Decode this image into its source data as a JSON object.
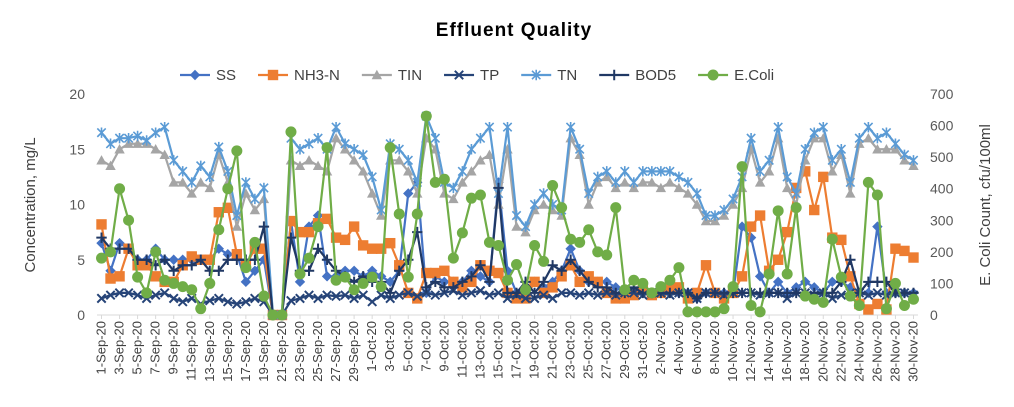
{
  "chart_data": {
    "type": "line",
    "title": "Effluent Quality",
    "y_label": "Concentration, mg/L",
    "y2_label": "E. Coli Count, cfu/100ml",
    "categories": [
      "1-Sep-20",
      null,
      "3-Sep-20",
      null,
      "5-Sep-20",
      null,
      "7-Sep-20",
      null,
      "9-Sep-20",
      null,
      "11-Sep-20",
      null,
      "13-Sep-20",
      null,
      "15-Sep-20",
      null,
      "17-Sep-20",
      null,
      "19-Sep-20",
      null,
      "21-Sep-20",
      null,
      "23-Sep-20",
      null,
      "25-Sep-20",
      null,
      "27-Sep-20",
      null,
      "29-Sep-20",
      null,
      "1-Oct-20",
      null,
      "3-Oct-20",
      null,
      "5-Oct-20",
      null,
      "7-Oct-20",
      null,
      "9-Oct-20",
      null,
      "11-Oct-20",
      null,
      "13-Oct-20",
      null,
      "15-Oct-20",
      null,
      "17-Oct-20",
      null,
      "19-Oct-20",
      null,
      "21-Oct-20",
      null,
      "23-Oct-20",
      null,
      "25-Oct-20",
      null,
      "27-Oct-20",
      null,
      "29-Oct-20",
      null,
      "31-Oct-20",
      null,
      "2-Nov-20",
      null,
      "4-Nov-20",
      null,
      "6-Nov-20",
      null,
      "8-Nov-20",
      null,
      "10-Nov-20",
      null,
      "12-Nov-20",
      null,
      "14-Nov-20",
      null,
      "16-Nov-20",
      null,
      "18-Nov-20",
      null,
      "20-Nov-20",
      null,
      "22-Nov-20",
      null,
      "24-Nov-20",
      null,
      "26-Nov-20",
      null,
      "28-Nov-20",
      null,
      "30-Nov-20"
    ],
    "ylim": [
      0,
      20
    ],
    "yticks": [
      0,
      5,
      10,
      15,
      20
    ],
    "y2lim": [
      0,
      700
    ],
    "y2ticks": [
      0,
      100,
      200,
      300,
      400,
      500,
      600,
      700
    ],
    "grid": false,
    "legend": "top",
    "series": [
      {
        "name": "SS",
        "color": "#4472c4",
        "values": [
          6.5,
          4,
          6.5,
          6,
          5,
          5,
          6,
          5,
          5,
          5,
          5,
          5,
          5,
          6,
          5.5,
          5.5,
          3,
          4,
          5,
          0,
          0,
          8.5,
          3,
          8,
          9,
          3.5,
          3.5,
          4,
          4,
          3.5,
          4,
          3.5,
          3,
          4,
          11,
          12,
          2,
          3.5,
          3,
          3,
          3,
          4,
          3.5,
          3,
          12,
          4,
          2,
          2,
          3,
          2.5,
          3,
          4,
          6,
          4,
          3,
          3,
          3,
          2.5,
          2,
          2,
          2,
          2,
          2,
          2,
          2,
          2,
          1.5,
          2,
          2,
          2,
          2,
          8,
          7,
          3.5,
          2,
          3,
          2,
          2.5,
          3,
          2.5,
          2,
          3,
          3,
          2.5,
          2,
          2,
          8,
          2,
          2,
          2,
          2
        ]
      },
      {
        "name": "NH3-N",
        "color": "#ed7d31",
        "values": [
          8.2,
          3.3,
          3.5,
          6,
          4.5,
          4.5,
          3.5,
          3,
          3,
          4.5,
          5.3,
          5,
          5,
          9.3,
          9.7,
          5.5,
          4.5,
          6,
          6,
          0,
          0,
          8.5,
          7.5,
          7.5,
          8.3,
          8.7,
          7,
          6.8,
          8,
          6.3,
          6,
          6,
          6.5,
          4.5,
          2,
          1.5,
          3.8,
          3.8,
          4,
          3,
          2.5,
          3,
          4.5,
          4,
          3.8,
          2,
          1.5,
          1.5,
          3,
          2,
          2.5,
          3.5,
          4.5,
          3,
          3.5,
          3,
          2,
          1.5,
          1.5,
          1.8,
          2.5,
          1.8,
          2,
          2.5,
          2.5,
          1.5,
          2,
          4.5,
          2,
          1.5,
          2,
          3.5,
          8,
          9,
          4,
          5,
          7.5,
          11.5,
          13,
          9.5,
          12.5,
          7,
          6.8,
          3.5,
          1,
          0.5,
          1,
          0.5,
          6,
          5.8,
          5.2
        ]
      },
      {
        "name": "TIN",
        "color": "#a5a5a5",
        "values": [
          14,
          13.5,
          15,
          15.5,
          15.5,
          15.5,
          15,
          14.5,
          12,
          12,
          11,
          12,
          11.5,
          14.5,
          12,
          8,
          11,
          9.5,
          10.5,
          0,
          0,
          14,
          13.5,
          14,
          13.5,
          13,
          16,
          15,
          14,
          13,
          11,
          9,
          14,
          14,
          13,
          11,
          16,
          15,
          11,
          10.5,
          12,
          13,
          14,
          14.5,
          10,
          15,
          8,
          7.5,
          9.5,
          10,
          9.5,
          9,
          16,
          14.5,
          10,
          12,
          12.5,
          11.5,
          12,
          11.5,
          12,
          12,
          11.5,
          12,
          11.5,
          11,
          10,
          8.5,
          8.5,
          9,
          10,
          11.5,
          15,
          12,
          13,
          16,
          11.5,
          10,
          14,
          16,
          16,
          13,
          14.5,
          11,
          15.5,
          16,
          15,
          15,
          15,
          14,
          13.5
        ]
      },
      {
        "name": "TP",
        "color": "#264478",
        "values": [
          1.5,
          1.8,
          2,
          2,
          1.8,
          1.5,
          1.8,
          2,
          1.5,
          1.2,
          1.5,
          1,
          1.3,
          1.5,
          1.2,
          1,
          1.2,
          1.5,
          1.2,
          0,
          0,
          1.3,
          1.5,
          1.8,
          1.5,
          1.8,
          1.7,
          1.8,
          1.5,
          1.8,
          1.2,
          1.8,
          1.5,
          1.8,
          2,
          1.7,
          2,
          1.8,
          2,
          2.2,
          1.8,
          2,
          2.2,
          1.8,
          2,
          1.5,
          1.8,
          1.5,
          1.5,
          1.8,
          1.5,
          2,
          2,
          1.8,
          2,
          1.8,
          2,
          1.8,
          2,
          2,
          1.8,
          2,
          2,
          1.8,
          2,
          2,
          1.5,
          2,
          2,
          1.8,
          2,
          2,
          2,
          1.8,
          2,
          2,
          1.5,
          2,
          2,
          1.8,
          2,
          1.5,
          1.8,
          2,
          2,
          1.8,
          2,
          1.8,
          2,
          2,
          1.8
        ]
      },
      {
        "name": "TN",
        "color": "#5b9bd5",
        "values": [
          16.5,
          15.5,
          16,
          16,
          16.2,
          15.8,
          16.5,
          17,
          14,
          13,
          12,
          13.5,
          12.5,
          15.2,
          13,
          9,
          12,
          10.5,
          11.5,
          0,
          0,
          16,
          15,
          15.5,
          16,
          15,
          17,
          15.5,
          15,
          14.5,
          12.5,
          9.5,
          15.5,
          15,
          14,
          12,
          18,
          16,
          12,
          11.5,
          13,
          15,
          16,
          17,
          11,
          17,
          9,
          8,
          10,
          11,
          10,
          9.5,
          17,
          15,
          11,
          12.5,
          13,
          12,
          13,
          12,
          13,
          13,
          13,
          13,
          12.5,
          12,
          11,
          9,
          9,
          9.5,
          10.5,
          12.5,
          16,
          13,
          14,
          17,
          12.5,
          11,
          15,
          16.5,
          17,
          14,
          15,
          12,
          16,
          17,
          16,
          16.5,
          15.5,
          14.5,
          14
        ]
      },
      {
        "name": "BOD5",
        "color": "#203864",
        "values": [
          7,
          6,
          6,
          6,
          5,
          5,
          4.5,
          5,
          4,
          4.5,
          4.5,
          5,
          4,
          4,
          5,
          5,
          5,
          5,
          8,
          0,
          0,
          7,
          4,
          4,
          6,
          5,
          4,
          3.5,
          3,
          3.5,
          3,
          3,
          2,
          4,
          5,
          7.5,
          2.5,
          3,
          2.5,
          2.5,
          3,
          3.5,
          4.5,
          3,
          11.5,
          2,
          2,
          3,
          2,
          3,
          4.5,
          4,
          5,
          4,
          3,
          2.5,
          2.5,
          2,
          2,
          2.5,
          2,
          2,
          2,
          2,
          2,
          2,
          1.5,
          2,
          2,
          2,
          2,
          2,
          2,
          2,
          2,
          2,
          2,
          2,
          2,
          2,
          2,
          2,
          3,
          5,
          2,
          3,
          3,
          3,
          2,
          2,
          2
        ]
      },
      {
        "name": "E.Coli",
        "color": "#70ad47",
        "axis": "y2",
        "values": [
          180,
          200,
          400,
          300,
          120,
          70,
          200,
          110,
          100,
          90,
          80,
          20,
          100,
          270,
          400,
          520,
          150,
          230,
          60,
          0,
          0,
          580,
          130,
          180,
          280,
          530,
          110,
          120,
          80,
          100,
          120,
          90,
          530,
          320,
          120,
          320,
          630,
          420,
          430,
          180,
          260,
          370,
          380,
          230,
          220,
          110,
          160,
          80,
          220,
          170,
          410,
          340,
          240,
          230,
          270,
          200,
          190,
          340,
          80,
          110,
          100,
          70,
          90,
          110,
          150,
          10,
          10,
          10,
          10,
          20,
          90,
          470,
          30,
          10,
          130,
          330,
          130,
          340,
          60,
          50,
          40,
          240,
          120,
          60,
          30,
          420,
          380,
          20,
          100,
          30,
          50
        ]
      }
    ]
  }
}
